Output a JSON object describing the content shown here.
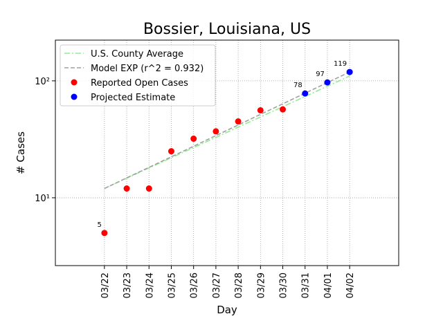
{
  "chart_data": {
    "type": "line",
    "title": "Bossier, Louisiana, US",
    "xlabel": "Day",
    "ylabel": "# Cases",
    "categories": [
      "03/22",
      "03/23",
      "03/24",
      "03/25",
      "03/26",
      "03/27",
      "03/28",
      "03/29",
      "03/30",
      "03/31",
      "04/01",
      "04/02"
    ],
    "ylim": [
      2.63,
      223
    ],
    "log_y": true,
    "yticks": [
      {
        "value": 10,
        "label": "10¹"
      },
      {
        "value": 100,
        "label": "10²"
      }
    ],
    "grid": true,
    "legend": "upper left",
    "series": [
      {
        "name": "U.S. County Average",
        "color": "#90ee90",
        "style": "dashdot",
        "values": [
          12,
          14.7,
          18.0,
          22.0,
          26.9,
          32.8,
          40.2,
          49.1,
          60.1,
          73.5,
          89.9,
          110
        ]
      },
      {
        "name": "Model EXP (r^2 = 0.932)",
        "color": "#a0a0a0",
        "style": "dashed",
        "values": [
          12,
          14.8,
          18.2,
          22.4,
          27.6,
          34.0,
          41.9,
          51.7,
          63.6,
          78.4,
          96.6,
          119
        ]
      },
      {
        "name": "Reported Open Cases",
        "color": "#ff0000",
        "style": "points",
        "values": [
          5,
          12,
          12,
          25,
          32,
          37,
          45,
          56,
          57,
          null,
          null,
          null
        ],
        "value_labels": [
          "5",
          null,
          null,
          null,
          null,
          null,
          null,
          null,
          null,
          null,
          null,
          null
        ]
      },
      {
        "name": "Projected Estimate",
        "color": "#0000ff",
        "style": "points",
        "values": [
          null,
          null,
          null,
          null,
          null,
          null,
          null,
          null,
          null,
          78,
          97,
          119
        ],
        "value_labels": [
          null,
          null,
          null,
          null,
          null,
          null,
          null,
          null,
          null,
          "78",
          "97",
          "119"
        ]
      }
    ]
  }
}
